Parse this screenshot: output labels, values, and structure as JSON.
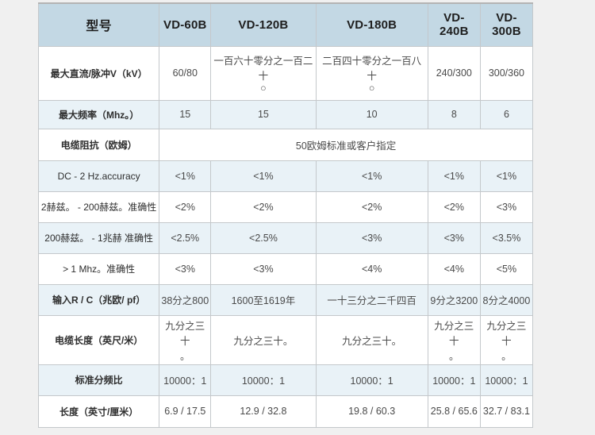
{
  "page": {
    "background": "#f0f0f0"
  },
  "table": {
    "title_cell": "型号",
    "columns": [
      "VD-60B",
      "VD-120B",
      "VD-180B",
      "VD-240B",
      "VD-300B"
    ],
    "rows": [
      {
        "label": "最大直流/脉冲V（kV）",
        "bold": true,
        "values": [
          "60/80",
          "一百六十零分之一百二十\n○",
          "二百四十零分之一百八十\n○",
          "240/300",
          "300/360"
        ]
      },
      {
        "label": "最大频率（Mhz。）",
        "bold": true,
        "values": [
          "15",
          "15",
          "10",
          "8",
          "6"
        ]
      },
      {
        "label": "电缆阻抗（欧姆）",
        "bold": true,
        "span_all": true,
        "values": [
          "50欧姆标准或客户指定"
        ]
      },
      {
        "label": "DC - 2 Hz.accuracy",
        "bold": false,
        "values": [
          "<1%",
          "<1%",
          "<1%",
          "<1%",
          "<1%"
        ]
      },
      {
        "label": "2赫兹。 - 200赫兹。准确性",
        "bold": false,
        "values": [
          "<2%",
          "<2%",
          "<2%",
          "<2%",
          "<3%"
        ]
      },
      {
        "label": "200赫兹。 - 1兆赫 准确性",
        "bold": false,
        "values": [
          "<2.5%",
          "<2.5%",
          "<3%",
          "<3%",
          "<3.5%"
        ]
      },
      {
        "label": "> 1 Mhz。准确性",
        "bold": false,
        "values": [
          "<3%",
          "<3%",
          "<4%",
          "<4%",
          "<5%"
        ]
      },
      {
        "label": "输入R / C（兆欧/ pf）",
        "bold": true,
        "values": [
          "38分之800",
          "1600至1619年",
          "一十三分之二千四百",
          "9分之3200",
          "8分之4000"
        ]
      },
      {
        "label": "电缆长度（英尺/米）",
        "bold": true,
        "values": [
          "九分之三十\n。",
          "九分之三十。",
          "九分之三十。",
          "九分之三十\n。",
          "九分之三十\n。"
        ]
      },
      {
        "label": "标准分频比",
        "bold": true,
        "values": [
          "10000：1",
          "10000：1",
          "10000：1",
          "10000：1",
          "10000：1"
        ]
      },
      {
        "label": "长度（英寸/厘米）",
        "bold": true,
        "values": [
          "6.9 / 17.5",
          "12.9 / 32.8",
          "19.8 / 60.3",
          "25.8 / 65.6",
          "32.7 / 83.1"
        ]
      }
    ],
    "colors": {
      "header_bg": "#c3d8e4",
      "alt_row_bg": "#e9f2f7",
      "row_bg": "#ffffff",
      "border": "#c4c8cb",
      "page_bg": "#f0f0f0",
      "text": "#4a4a4a"
    }
  }
}
